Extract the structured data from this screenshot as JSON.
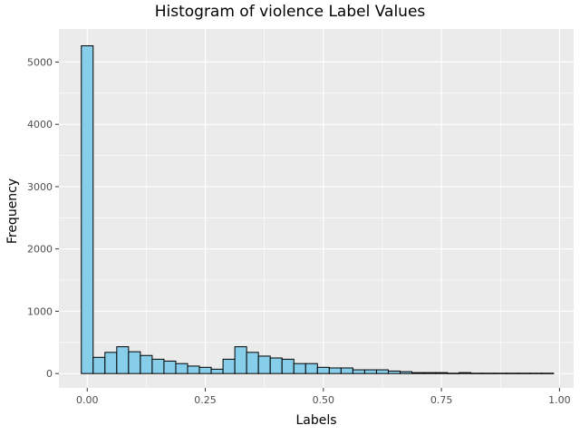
{
  "chart_data": {
    "type": "bar",
    "title": "Histogram of violence Label Values",
    "xlabel": "Labels",
    "ylabel": "Frequency",
    "xlim": [
      -0.06,
      1.03
    ],
    "ylim": [
      -230,
      5530
    ],
    "xticks": [
      0.0,
      0.25,
      0.5,
      0.75,
      1.0
    ],
    "xtick_labels": [
      "0.00",
      "0.25",
      "0.50",
      "0.75",
      "1.00"
    ],
    "yticks": [
      0,
      1000,
      2000,
      3000,
      4000,
      5000
    ],
    "ytick_labels": [
      "0",
      "1000",
      "2000",
      "3000",
      "4000",
      "5000"
    ],
    "grid": true,
    "bar_fill": "#87ceeb",
    "bar_stroke": "#000000",
    "panel_bg": "#ebebeb",
    "bin_width": 0.025,
    "bin_centers": [
      0.0,
      0.025,
      0.05,
      0.075,
      0.1,
      0.125,
      0.15,
      0.175,
      0.2,
      0.225,
      0.25,
      0.275,
      0.3,
      0.325,
      0.35,
      0.375,
      0.4,
      0.425,
      0.45,
      0.475,
      0.5,
      0.525,
      0.55,
      0.575,
      0.6,
      0.625,
      0.65,
      0.675,
      0.7,
      0.725,
      0.75,
      0.775,
      0.8,
      0.825,
      0.85,
      0.875,
      0.9,
      0.925,
      0.95,
      0.975
    ],
    "values": [
      5260,
      260,
      340,
      430,
      350,
      290,
      230,
      200,
      160,
      120,
      100,
      70,
      230,
      430,
      340,
      280,
      250,
      230,
      160,
      160,
      100,
      90,
      90,
      60,
      60,
      60,
      40,
      30,
      15,
      15,
      15,
      5,
      15,
      5,
      5,
      5,
      5,
      5,
      5,
      5
    ]
  }
}
